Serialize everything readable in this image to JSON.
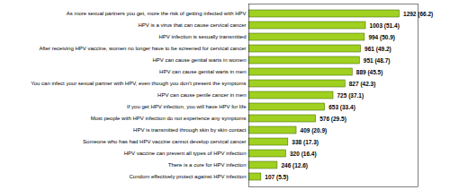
{
  "chart_data": {
    "type": "bar",
    "orientation": "horizontal",
    "categories": [
      "Condom effectively protect against HPV infection",
      "There is a cure for HPV infection",
      "HPV vaccine can prevent all types of HPV infection",
      "Someone who has had HPV vaccine cannot develop cervical cancer",
      "HPV is transmitted through skin by skin contact",
      "Most people with HPV infection do not experience any symptoms",
      "If you get HPV infection, you will have HPV for life",
      "HPV can cause penile cancer in men",
      "You can infect your sexual partner with HPV, even though you don't present the symptoms",
      "HPV can cause genital warts in men",
      "HPV can cause genital warts in women",
      "After receiving HPV vaccine, women no longer have to be screened for cervical cancer",
      "HPV infection is sexually transmitted",
      "HPV is a virus that can cause cervical cancer",
      "As more sexual partners you get, more the risk of getting infected with HPV"
    ],
    "values": [
      107,
      246,
      320,
      338,
      409,
      576,
      653,
      725,
      827,
      889,
      951,
      961,
      994,
      1003,
      1292
    ],
    "value_labels": [
      "107 (5.5)",
      "246 (12.6)",
      "320 (16.4)",
      "338 (17.3)",
      "409 (20.9)",
      "576 (29.5)",
      "653 (33.4)",
      "725 (37.1)",
      "827 (42.3)",
      "889 (45.5)",
      "951 (48.7)",
      "961 (49.2)",
      "994 (50.9)",
      "1003 (51.4)",
      "1292 (66.2)"
    ],
    "color": "#a0d020",
    "xlim": [
      0,
      1450
    ],
    "data_labels": true,
    "tick_labels": "y",
    "grid": false
  }
}
